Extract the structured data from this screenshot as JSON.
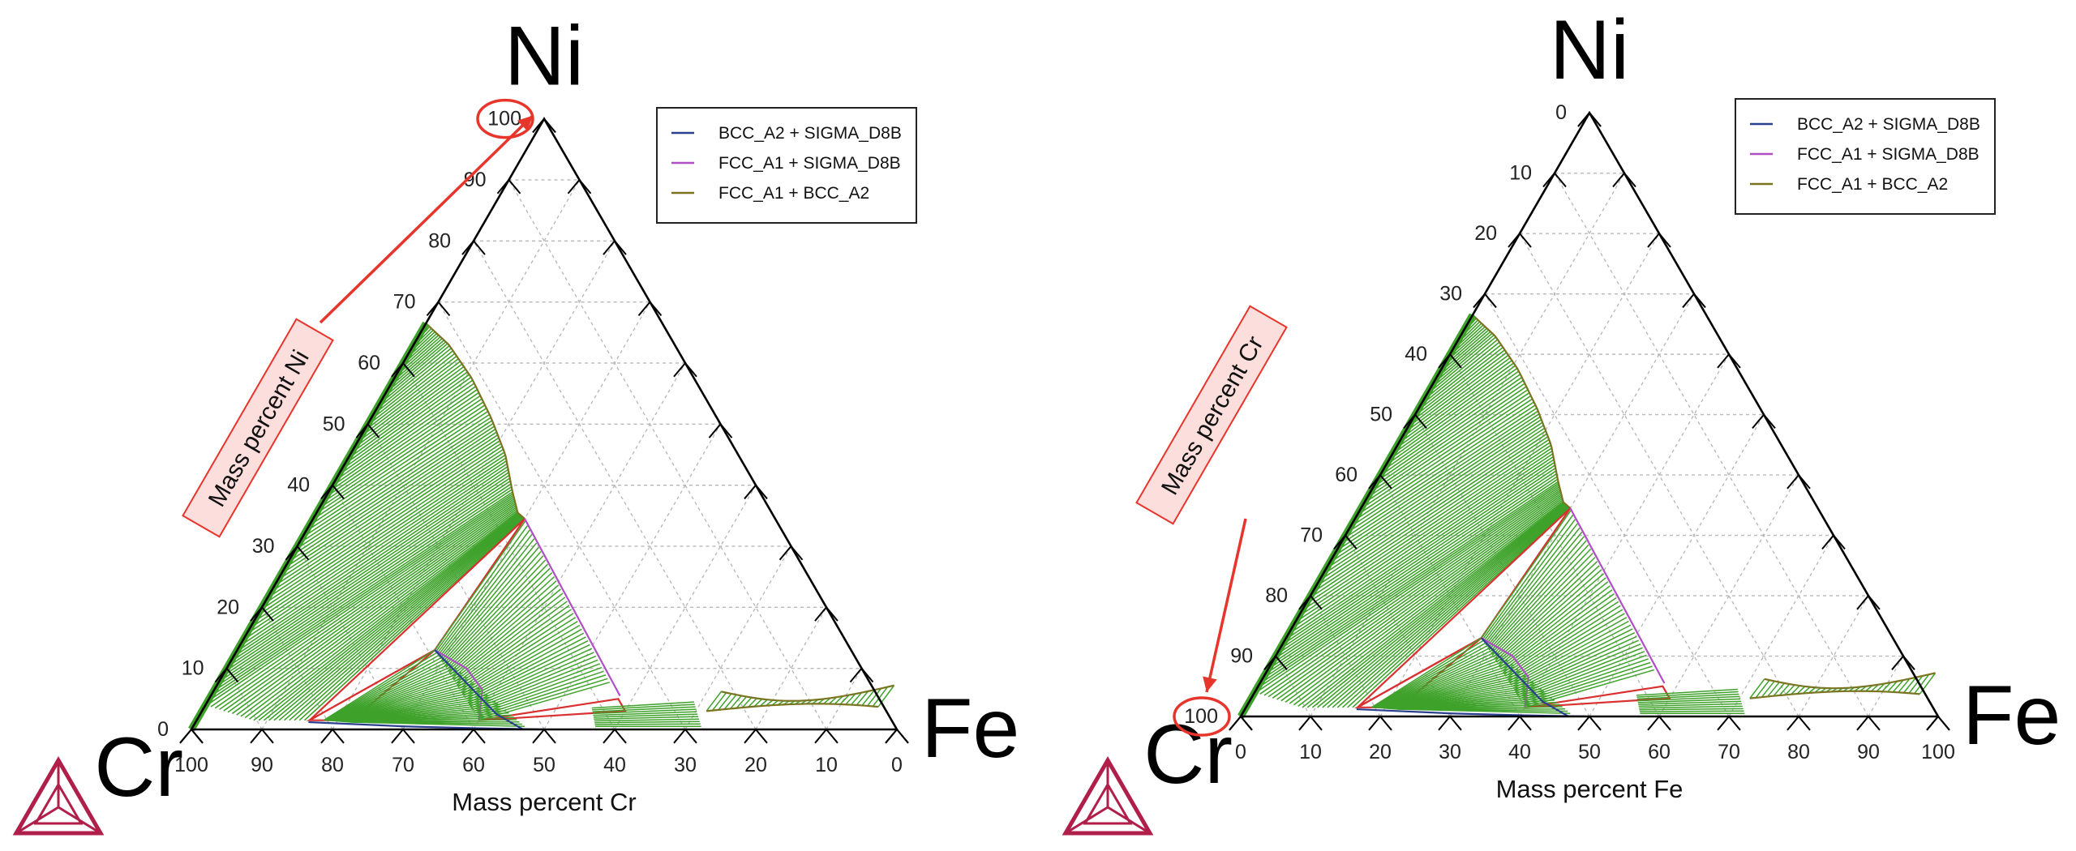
{
  "chart_data": [
    {
      "type": "ternary-phase-diagram",
      "corners": {
        "top": "Ni",
        "left": "Cr",
        "right": "Fe"
      },
      "left_axis": {
        "label": "Mass percent Ni",
        "ticks": [
          "0",
          "10",
          "20",
          "30",
          "40",
          "50",
          "60",
          "70",
          "80",
          "90",
          "100"
        ],
        "callout_tick": "100"
      },
      "bottom_axis": {
        "label": "Mass percent Cr",
        "ticks": [
          "100",
          "90",
          "80",
          "70",
          "60",
          "50",
          "40",
          "30",
          "20",
          "10",
          "0"
        ]
      },
      "grid": true,
      "legend_position": "top-right",
      "legend": [
        {
          "name": "BCC_A2 + SIGMA_D8B",
          "color": "#2b3f8f"
        },
        {
          "name": "FCC_A1 + SIGMA_D8B",
          "color": "#b04fc4"
        },
        {
          "name": "FCC_A1 + BCC_A2",
          "color": "#7a7420"
        }
      ],
      "three_phase_color": "#d93030",
      "tie_line_color": "#3ea22a"
    },
    {
      "type": "ternary-phase-diagram",
      "corners": {
        "top": "Ni",
        "left": "Cr",
        "right": "Fe"
      },
      "left_axis": {
        "label": "Mass percent Cr",
        "ticks": [
          "100",
          "90",
          "80",
          "70",
          "60",
          "50",
          "40",
          "30",
          "20",
          "10",
          "0"
        ],
        "callout_tick": "100"
      },
      "bottom_axis": {
        "label": "Mass percent Fe",
        "ticks": [
          "0",
          "10",
          "20",
          "30",
          "40",
          "50",
          "60",
          "70",
          "80",
          "90",
          "100"
        ]
      },
      "grid": true,
      "legend_position": "top-right",
      "legend": [
        {
          "name": "BCC_A2 + SIGMA_D8B",
          "color": "#2b3f8f"
        },
        {
          "name": "FCC_A1 + SIGMA_D8B",
          "color": "#b04fc4"
        },
        {
          "name": "FCC_A1 + BCC_A2",
          "color": "#7a7420"
        }
      ],
      "three_phase_color": "#d93030",
      "tie_line_color": "#3ea22a"
    }
  ],
  "logo": {
    "name": "thermo-calc-logo-icon",
    "color": "#b01e4a"
  },
  "callout_color": "#e8352c"
}
